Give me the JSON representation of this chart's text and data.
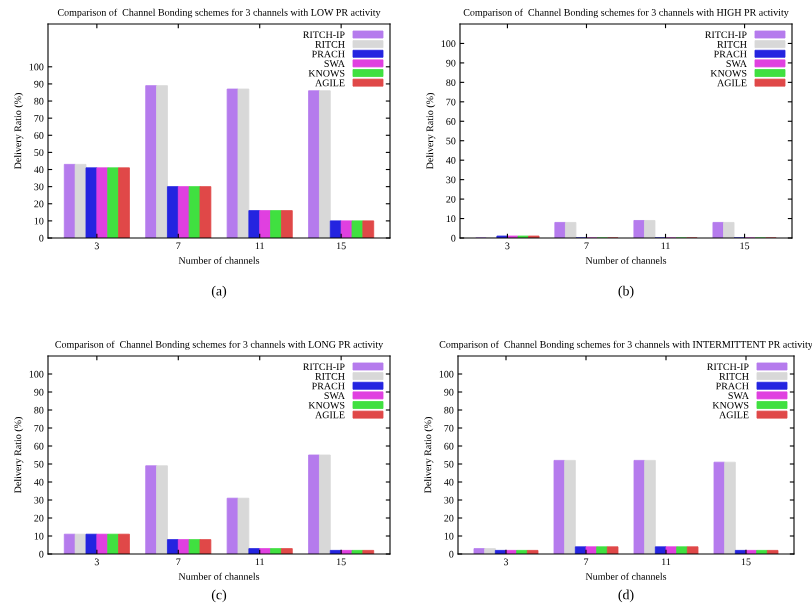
{
  "chart_data": [
    {
      "type": "bar",
      "title": "Comparison of  Channel Bonding schemes for 3 channels with LOW PR activity",
      "xlabel": "Number of channels",
      "ylabel": "Delivery Ratio (%)",
      "categories": [
        "3",
        "7",
        "11",
        "15"
      ],
      "ylim": [
        0,
        125
      ],
      "yticks": [
        0,
        10,
        20,
        30,
        40,
        50,
        60,
        70,
        80,
        90,
        100
      ],
      "legend": "top right",
      "grid": false,
      "annotations": [
        "(a)"
      ],
      "series": [
        {
          "name": "RITCH-IP",
          "color": "#b57bed",
          "values": [
            43,
            89,
            87,
            86
          ]
        },
        {
          "name": "RITCH",
          "color": "#d8d8d8",
          "values": [
            43,
            89,
            87,
            86
          ]
        },
        {
          "name": "PRACH",
          "color": "#2424e0",
          "values": [
            41,
            30,
            16,
            10
          ]
        },
        {
          "name": "SWA",
          "color": "#e040e0",
          "values": [
            41,
            30,
            16,
            10
          ]
        },
        {
          "name": "KNOWS",
          "color": "#40e040",
          "values": [
            41,
            30,
            16,
            10
          ]
        },
        {
          "name": "AGILE",
          "color": "#e04848",
          "values": [
            41,
            30,
            16,
            10
          ]
        }
      ]
    },
    {
      "type": "bar",
      "title": "Comparison of  Channel Bonding schemes for 3 channels with HIGH PR activity",
      "xlabel": "Number of channels",
      "ylabel": "Delivery Ratio (%)",
      "categories": [
        "3",
        "7",
        "11",
        "15"
      ],
      "ylim": [
        0,
        110
      ],
      "yticks": [
        0,
        10,
        20,
        30,
        40,
        50,
        60,
        70,
        80,
        90,
        100
      ],
      "legend": "top right",
      "grid": false,
      "annotations": [
        "(b)"
      ],
      "series": [
        {
          "name": "RITCH-IP",
          "color": "#b57bed",
          "values": [
            0,
            8,
            9,
            8
          ]
        },
        {
          "name": "RITCH",
          "color": "#d8d8d8",
          "values": [
            0,
            8,
            9,
            8
          ]
        },
        {
          "name": "PRACH",
          "color": "#2424e0",
          "values": [
            1,
            0,
            0,
            0
          ]
        },
        {
          "name": "SWA",
          "color": "#e040e0",
          "values": [
            1,
            0,
            0,
            0
          ]
        },
        {
          "name": "KNOWS",
          "color": "#40e040",
          "values": [
            1,
            0,
            0,
            0
          ]
        },
        {
          "name": "AGILE",
          "color": "#e04848",
          "values": [
            1,
            0,
            0,
            0
          ]
        }
      ]
    },
    {
      "type": "bar",
      "title": "Comparison of  Channel Bonding schemes for 3 channels with LONG PR activity",
      "xlabel": "Number of channels",
      "ylabel": "Delivery Ratio (%)",
      "categories": [
        "3",
        "7",
        "11",
        "15"
      ],
      "ylim": [
        0,
        110
      ],
      "yticks": [
        0,
        10,
        20,
        30,
        40,
        50,
        60,
        70,
        80,
        90,
        100
      ],
      "legend": "top right",
      "grid": false,
      "annotations": [
        "(c)"
      ],
      "series": [
        {
          "name": "RITCH-IP",
          "color": "#b57bed",
          "values": [
            11,
            49,
            31,
            55
          ]
        },
        {
          "name": "RITCH",
          "color": "#d8d8d8",
          "values": [
            11,
            49,
            31,
            55
          ]
        },
        {
          "name": "PRACH",
          "color": "#2424e0",
          "values": [
            11,
            8,
            3,
            2
          ]
        },
        {
          "name": "SWA",
          "color": "#e040e0",
          "values": [
            11,
            8,
            3,
            2
          ]
        },
        {
          "name": "KNOWS",
          "color": "#40e040",
          "values": [
            11,
            8,
            3,
            2
          ]
        },
        {
          "name": "AGILE",
          "color": "#e04848",
          "values": [
            11,
            8,
            3,
            2
          ]
        }
      ]
    },
    {
      "type": "bar",
      "title": "Comparison of  Channel Bonding schemes for 3 channels with INTERMITTENT PR activity",
      "xlabel": "Number of channels",
      "ylabel": "Delivery Ratio (%)",
      "categories": [
        "3",
        "7",
        "11",
        "15"
      ],
      "ylim": [
        0,
        110
      ],
      "yticks": [
        0,
        10,
        20,
        30,
        40,
        50,
        60,
        70,
        80,
        90,
        100
      ],
      "legend": "top right",
      "grid": false,
      "annotations": [
        "(d)"
      ],
      "series": [
        {
          "name": "RITCH-IP",
          "color": "#b57bed",
          "values": [
            3,
            52,
            52,
            51
          ]
        },
        {
          "name": "RITCH",
          "color": "#d8d8d8",
          "values": [
            3,
            52,
            52,
            51
          ]
        },
        {
          "name": "PRACH",
          "color": "#2424e0",
          "values": [
            2,
            4,
            4,
            2
          ]
        },
        {
          "name": "SWA",
          "color": "#e040e0",
          "values": [
            2,
            4,
            4,
            2
          ]
        },
        {
          "name": "KNOWS",
          "color": "#40e040",
          "values": [
            2,
            4,
            4,
            2
          ]
        },
        {
          "name": "AGILE",
          "color": "#e04848",
          "values": [
            2,
            4,
            4,
            2
          ]
        }
      ]
    }
  ]
}
